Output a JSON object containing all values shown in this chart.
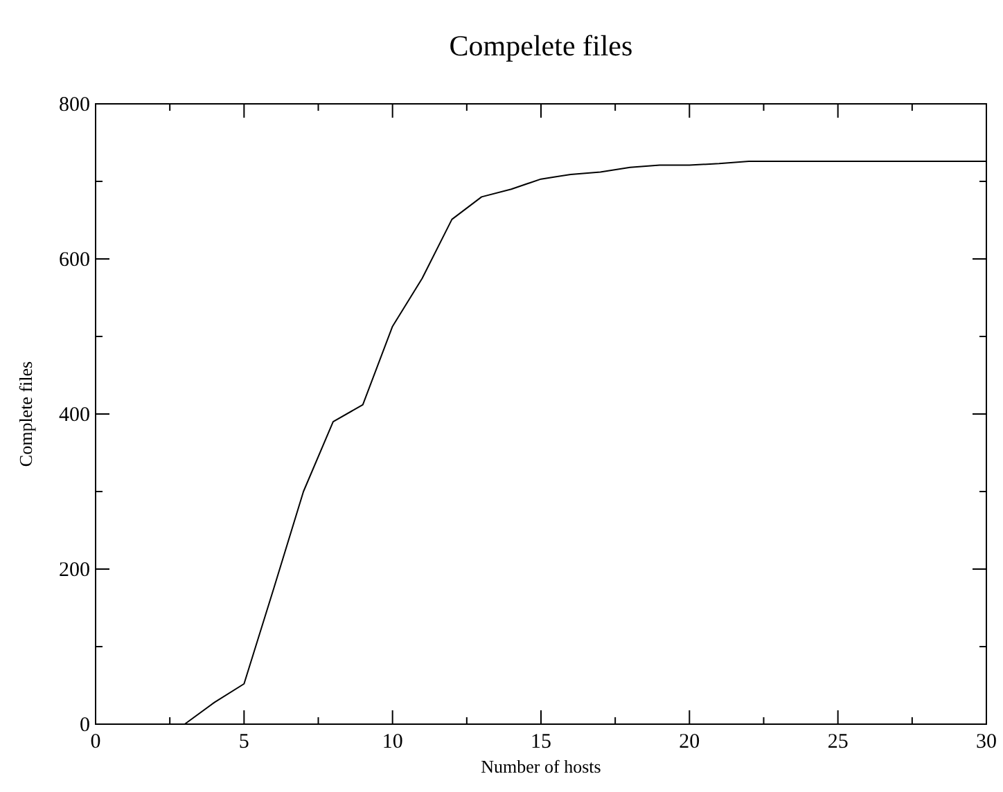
{
  "chart_data": {
    "type": "line",
    "title": "Compelete files",
    "xlabel": "Number of hosts",
    "ylabel": "Complete files",
    "x": [
      3,
      4,
      5,
      6,
      7,
      8,
      9,
      10,
      11,
      12,
      13,
      14,
      15,
      16,
      17,
      18,
      19,
      20,
      21,
      22,
      23,
      24,
      25,
      26,
      27,
      28,
      29,
      30
    ],
    "series": [
      {
        "color": "#000000",
        "values": [
          0,
          28,
          52,
          175,
          300,
          390,
          412,
          513,
          575,
          651,
          680,
          690,
          703,
          709,
          712,
          718,
          721,
          721,
          723,
          726,
          726,
          726,
          726,
          726,
          726,
          726,
          726,
          726
        ]
      }
    ],
    "xlim": [
      0,
      30
    ],
    "ylim": [
      0,
      800
    ],
    "xticks": [
      0,
      {
        "value": 2.5,
        "label": null
      },
      5,
      {
        "value": 7.5,
        "label": null
      },
      10,
      {
        "value": 12.5,
        "label": null
      },
      15,
      {
        "value": 17.5,
        "label": null
      },
      20,
      {
        "value": 22.5,
        "label": null
      },
      25,
      {
        "value": 27.5,
        "label": null
      },
      30
    ],
    "yticks": [
      0,
      {
        "value": 100,
        "label": null
      },
      200,
      {
        "value": 300,
        "label": null
      },
      400,
      {
        "value": 500,
        "label": null
      },
      600,
      {
        "value": 700,
        "label": null
      },
      800
    ],
    "grid": false,
    "marker": "none",
    "line_style": "solid"
  }
}
